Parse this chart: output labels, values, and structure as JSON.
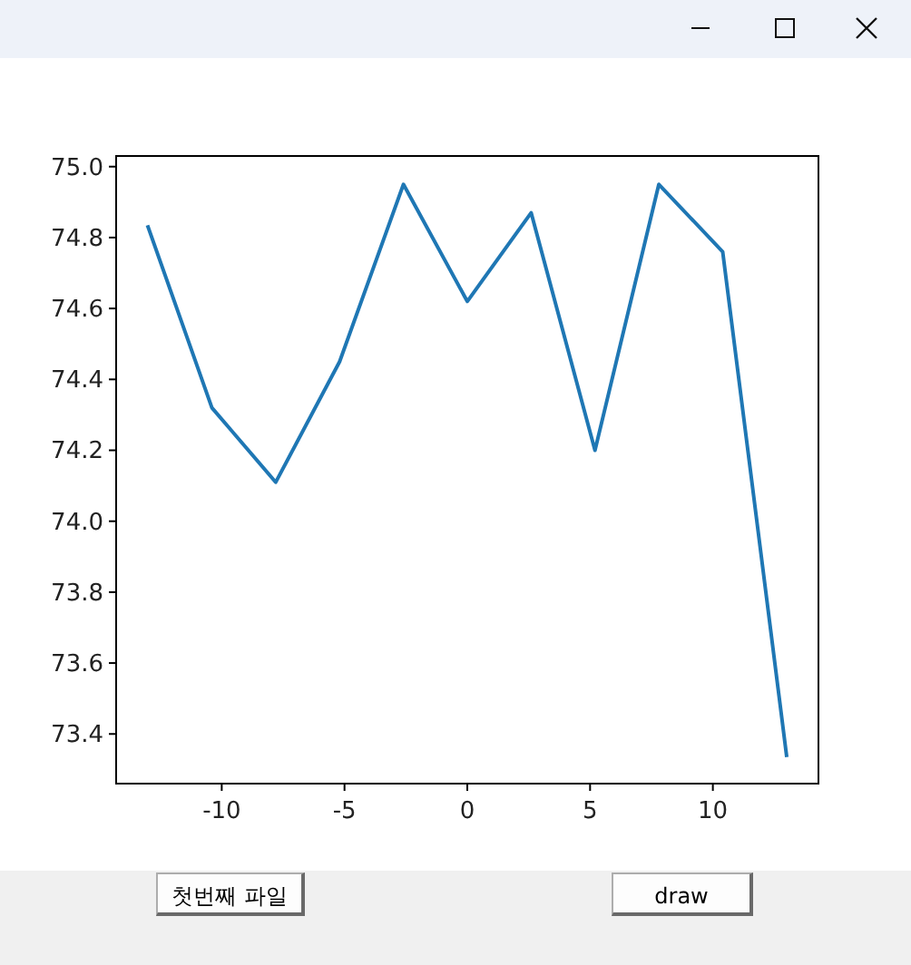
{
  "chart_data": {
    "type": "line",
    "x": [
      -13,
      -10.4,
      -7.8,
      -5.2,
      -2.6,
      0,
      2.6,
      5.2,
      7.8,
      10.4,
      13
    ],
    "series": [
      {
        "color": "#1f77b4",
        "values": [
          74.83,
          74.32,
          74.11,
          74.45,
          74.95,
          74.62,
          74.87,
          74.2,
          74.95,
          74.76,
          73.34
        ]
      }
    ],
    "xlim": [
      -14.3,
      14.3
    ],
    "ylim": [
      73.26,
      75.03
    ],
    "xticks": [
      {
        "value": -10,
        "label": "-10"
      },
      {
        "value": -5,
        "label": "-5"
      },
      0,
      5,
      10
    ],
    "yticks": [
      {
        "value": 73.4,
        "label": "73.4"
      },
      {
        "value": 73.6,
        "label": "73.6"
      },
      {
        "value": 73.8,
        "label": "73.8"
      },
      {
        "value": 74.0,
        "label": "74.0"
      },
      {
        "value": 74.2,
        "label": "74.2"
      },
      {
        "value": 74.4,
        "label": "74.4"
      },
      {
        "value": 74.6,
        "label": "74.6"
      },
      {
        "value": 74.8,
        "label": "74.8"
      },
      {
        "value": 75.0,
        "label": "75.0"
      }
    ],
    "grid": false,
    "marker": "none",
    "line_style": "solid",
    "annotations": [
      "첫번째 파일",
      "draw"
    ]
  }
}
